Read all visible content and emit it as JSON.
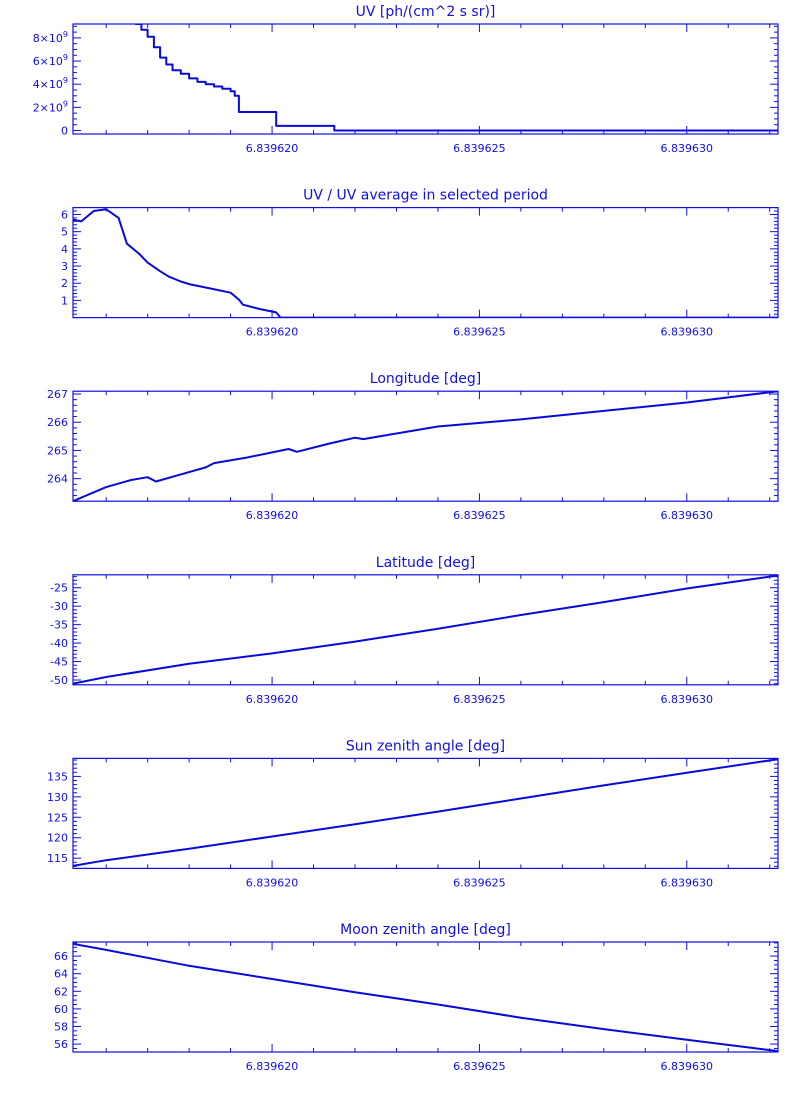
{
  "colors": {
    "axis": "#1010e0",
    "series": "#0a0ad8",
    "background": "#ffffff"
  },
  "chart_data": [
    {
      "type": "line",
      "step": true,
      "title": "UV [ph/(cm^2 s sr)]",
      "xlabel": "",
      "ylabel": "",
      "xlim": [
        6.8396152,
        6.8396322
      ],
      "ylim": [
        -300000000,
        9200000000
      ],
      "x_ticks": [
        6.83962,
        6.839625,
        6.83963
      ],
      "x_tick_labels": [
        "6.839620",
        "6.839625",
        "6.839630"
      ],
      "y_ticks": [
        0,
        2000000000,
        4000000000,
        6000000000,
        8000000000
      ],
      "y_tick_labels": [
        {
          "base": "0",
          "exp": ""
        },
        {
          "base": "2×10",
          "exp": "9"
        },
        {
          "base": "4×10",
          "exp": "9"
        },
        {
          "base": "6×10",
          "exp": "9"
        },
        {
          "base": "8×10",
          "exp": "9"
        }
      ],
      "minor_per_major": 4,
      "series": [
        {
          "x": [
            6.8396167,
            6.83961685,
            6.839617,
            6.83961715,
            6.8396173,
            6.83961745,
            6.8396176,
            6.8396178,
            6.839618,
            6.8396182,
            6.8396184,
            6.8396186,
            6.8396188,
            6.839619,
            6.8396191,
            6.8396192,
            6.8396195,
            6.8396201,
            6.8396215,
            6.8396235,
            6.839625,
            6.839627,
            6.839629,
            6.839631,
            6.8396322
          ],
          "y": [
            9200000000,
            8700000000,
            8100000000,
            7200000000,
            6300000000,
            5700000000,
            5200000000,
            4900000000,
            4500000000,
            4200000000,
            4000000000,
            3800000000,
            3600000000,
            3400000000,
            3000000000,
            1600000000,
            1600000000,
            400000000,
            0,
            0,
            0,
            0,
            0,
            0,
            0
          ]
        }
      ]
    },
    {
      "type": "line",
      "title": "UV / UV average in selected period",
      "xlabel": "",
      "ylabel": "",
      "xlim": [
        6.8396152,
        6.8396322
      ],
      "ylim": [
        0,
        6.4
      ],
      "x_ticks": [
        6.83962,
        6.839625,
        6.83963
      ],
      "x_tick_labels": [
        "6.839620",
        "6.839625",
        "6.839630"
      ],
      "y_ticks": [
        1,
        2,
        3,
        4,
        5,
        6
      ],
      "y_tick_labels": [
        {
          "base": "1",
          "exp": ""
        },
        {
          "base": "2",
          "exp": ""
        },
        {
          "base": "3",
          "exp": ""
        },
        {
          "base": "4",
          "exp": ""
        },
        {
          "base": "5",
          "exp": ""
        },
        {
          "base": "6",
          "exp": ""
        }
      ],
      "minor_per_major": 5,
      "series": [
        {
          "x": [
            6.8396152,
            6.8396154,
            6.8396157,
            6.839616,
            6.8396163,
            6.8396165,
            6.8396168,
            6.839617,
            6.8396173,
            6.8396175,
            6.8396178,
            6.839618,
            6.8396185,
            6.839619,
            6.8396192,
            6.8396193,
            6.8396197,
            6.8396201,
            6.8396202,
            6.839621,
            6.8396225,
            6.8396245,
            6.8396265,
            6.8396285,
            6.8396305,
            6.8396322
          ],
          "y": [
            5.7,
            5.6,
            6.2,
            6.3,
            5.8,
            4.3,
            3.7,
            3.2,
            2.7,
            2.4,
            2.1,
            1.95,
            1.7,
            1.45,
            1.05,
            0.75,
            0.5,
            0.3,
            0.0,
            0.0,
            0.0,
            0.0,
            0.0,
            0.0,
            0.0,
            0.0
          ]
        }
      ]
    },
    {
      "type": "line",
      "title": "Longitude [deg]",
      "xlabel": "",
      "ylabel": "",
      "xlim": [
        6.8396152,
        6.8396322
      ],
      "ylim": [
        263.2,
        267.1
      ],
      "x_ticks": [
        6.83962,
        6.839625,
        6.83963
      ],
      "x_tick_labels": [
        "6.839620",
        "6.839625",
        "6.839630"
      ],
      "y_ticks": [
        264,
        265,
        266,
        267
      ],
      "y_tick_labels": [
        {
          "base": "264",
          "exp": ""
        },
        {
          "base": "265",
          "exp": ""
        },
        {
          "base": "266",
          "exp": ""
        },
        {
          "base": "267",
          "exp": ""
        }
      ],
      "minor_per_major": 5,
      "series": [
        {
          "x": [
            6.8396152,
            6.8396156,
            6.839616,
            6.8396166,
            6.839617,
            6.8396172,
            6.8396178,
            6.8396184,
            6.8396186,
            6.8396194,
            6.8396204,
            6.8396206,
            6.8396214,
            6.839622,
            6.8396222,
            6.8396228,
            6.839624,
            6.839626,
            6.839628,
            6.83963,
            6.8396322
          ],
          "y": [
            263.2,
            263.45,
            263.7,
            263.95,
            264.05,
            263.9,
            264.15,
            264.4,
            264.55,
            264.75,
            265.05,
            264.95,
            265.25,
            265.45,
            265.4,
            265.55,
            265.85,
            266.1,
            266.4,
            266.7,
            267.1
          ]
        }
      ]
    },
    {
      "type": "line",
      "title": "Latitude [deg]",
      "xlabel": "",
      "ylabel": "",
      "xlim": [
        6.8396152,
        6.8396322
      ],
      "ylim": [
        -51.3,
        -21.5
      ],
      "x_ticks": [
        6.83962,
        6.839625,
        6.83963
      ],
      "x_tick_labels": [
        "6.839620",
        "6.839625",
        "6.839630"
      ],
      "y_ticks": [
        -50,
        -45,
        -40,
        -35,
        -30,
        -25
      ],
      "y_tick_labels": [
        {
          "base": "-50",
          "exp": ""
        },
        {
          "base": "-45",
          "exp": ""
        },
        {
          "base": "-40",
          "exp": ""
        },
        {
          "base": "-35",
          "exp": ""
        },
        {
          "base": "-30",
          "exp": ""
        },
        {
          "base": "-25",
          "exp": ""
        }
      ],
      "minor_per_major": 5,
      "series": [
        {
          "x": [
            6.8396152,
            6.839616,
            6.839618,
            6.83962,
            6.839622,
            6.839624,
            6.839626,
            6.839628,
            6.83963,
            6.8396322
          ],
          "y": [
            -51.0,
            -49.2,
            -45.6,
            -42.8,
            -39.6,
            -36.1,
            -32.4,
            -28.9,
            -25.2,
            -21.7
          ]
        }
      ]
    },
    {
      "type": "line",
      "title": "Sun zenith angle [deg]",
      "xlabel": "",
      "ylabel": "",
      "xlim": [
        6.8396152,
        6.8396322
      ],
      "ylim": [
        112.5,
        139.4
      ],
      "x_ticks": [
        6.83962,
        6.839625,
        6.83963
      ],
      "x_tick_labels": [
        "6.839620",
        "6.839625",
        "6.839630"
      ],
      "y_ticks": [
        115,
        120,
        125,
        130,
        135
      ],
      "y_tick_labels": [
        {
          "base": "115",
          "exp": ""
        },
        {
          "base": "120",
          "exp": ""
        },
        {
          "base": "125",
          "exp": ""
        },
        {
          "base": "130",
          "exp": ""
        },
        {
          "base": "135",
          "exp": ""
        }
      ],
      "minor_per_major": 5,
      "series": [
        {
          "x": [
            6.8396152,
            6.839616,
            6.839618,
            6.83962,
            6.839622,
            6.839624,
            6.839626,
            6.839628,
            6.83963,
            6.8396322
          ],
          "y": [
            113.1,
            114.5,
            117.3,
            120.3,
            123.3,
            126.4,
            129.6,
            132.8,
            135.9,
            139.2
          ]
        }
      ]
    },
    {
      "type": "line",
      "title": "Moon zenith angle [deg]",
      "xlabel": "",
      "ylabel": "",
      "xlim": [
        6.8396152,
        6.8396322
      ],
      "ylim": [
        55.1,
        67.6
      ],
      "x_ticks": [
        6.83962,
        6.839625,
        6.83963
      ],
      "x_tick_labels": [
        "6.839620",
        "6.839625",
        "6.839630"
      ],
      "y_ticks": [
        56,
        58,
        60,
        62,
        64,
        66
      ],
      "y_tick_labels": [
        {
          "base": "56",
          "exp": ""
        },
        {
          "base": "58",
          "exp": ""
        },
        {
          "base": "60",
          "exp": ""
        },
        {
          "base": "62",
          "exp": ""
        },
        {
          "base": "64",
          "exp": ""
        },
        {
          "base": "66",
          "exp": ""
        }
      ],
      "minor_per_major": 4,
      "series": [
        {
          "x": [
            6.8396152,
            6.839616,
            6.839618,
            6.83962,
            6.839622,
            6.839624,
            6.839626,
            6.839628,
            6.83963,
            6.8396322
          ],
          "y": [
            67.4,
            66.7,
            64.9,
            63.4,
            61.9,
            60.5,
            59.0,
            57.7,
            56.5,
            55.2
          ]
        }
      ]
    }
  ]
}
